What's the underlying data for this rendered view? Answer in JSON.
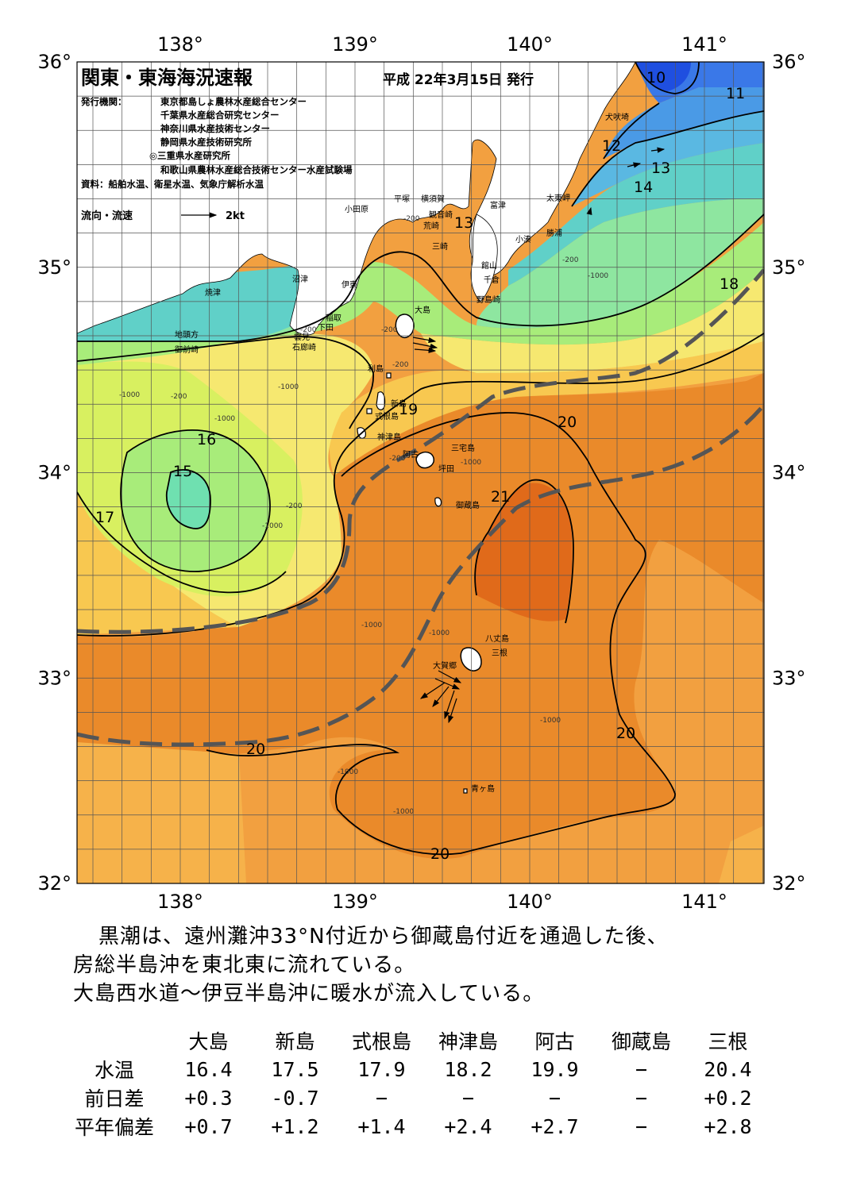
{
  "map": {
    "title": "関東・東海海況速報",
    "issue_date": "平成 22年3月15日 発行",
    "issuers_label": "発行機関：",
    "issuers": [
      "東京都島しょ農林水産総合センター",
      "千葉県水産総合研究センター",
      "神奈川県水産技術センター",
      "静岡県水産技術研究所",
      "◎三重県水産研究所",
      "和歌山県農林水産総合技術センター水産試験場"
    ],
    "sources": "資料：船舶水温、衛星水温、気象庁解析水温",
    "legend_label": "流向・流速",
    "legend_value": "2kt",
    "lon_ticks": [
      "138°",
      "139°",
      "140°",
      "141°"
    ],
    "lat_ticks": [
      "36°",
      "35°",
      "34°",
      "33°",
      "32°"
    ],
    "places": [
      {
        "name": "小田原"
      },
      {
        "name": "平塚"
      },
      {
        "name": "横須賀"
      },
      {
        "name": "観音崎"
      },
      {
        "name": "荒崎"
      },
      {
        "name": "三崎"
      },
      {
        "name": "富津"
      },
      {
        "name": "館山"
      },
      {
        "name": "千倉"
      },
      {
        "name": "野島崎"
      },
      {
        "name": "小湊"
      },
      {
        "name": "勝浦"
      },
      {
        "name": "太東岬"
      },
      {
        "name": "犬吠埼"
      },
      {
        "name": "沼津"
      },
      {
        "name": "伊東"
      },
      {
        "name": "稲取"
      },
      {
        "name": "下田"
      },
      {
        "name": "雲見"
      },
      {
        "name": "石廊崎"
      },
      {
        "name": "焼津"
      },
      {
        "name": "地頭方"
      },
      {
        "name": "御前崎"
      },
      {
        "name": "大島"
      },
      {
        "name": "利島"
      },
      {
        "name": "新島"
      },
      {
        "name": "式根島"
      },
      {
        "name": "神津島"
      },
      {
        "name": "三宅島"
      },
      {
        "name": "阿古"
      },
      {
        "name": "坪田"
      },
      {
        "name": "御蔵島"
      },
      {
        "name": "八丈島"
      },
      {
        "name": "三根"
      },
      {
        "name": "大賀郷"
      },
      {
        "name": "青ヶ島"
      }
    ],
    "isotherm_labels": [
      "10",
      "11",
      "12",
      "13",
      "14",
      "13",
      "16",
      "15",
      "17",
      "18",
      "19",
      "20",
      "21",
      "20",
      "20",
      "20"
    ],
    "depth_labels": [
      "-200",
      "-200",
      "-200",
      "-200",
      "-200",
      "-200",
      "-200",
      "-1000",
      "-1000",
      "-1000",
      "-1000",
      "-1000",
      "-1000",
      "-1000",
      "-1000",
      "-1000",
      "-1000",
      "-1000",
      "-200"
    ],
    "colors": {
      "t10": "#1f4fe0",
      "t11": "#3a78e8",
      "t12": "#4a9ae6",
      "t13": "#5ab8e2",
      "t14": "#60d0c8",
      "t15": "#6fe0b0",
      "t16": "#a8ec7a",
      "t17": "#d8f060",
      "t18": "#f6e870",
      "t19": "#f8c850",
      "t20": "#f2a040",
      "t21": "#ea8a2a",
      "t22": "#e06a1a",
      "land": "#ffffff",
      "kuroshio": "#555555"
    }
  },
  "summary": {
    "line1": "黒潮は、遠州灘沖33°N付近から御蔵島付近を通過した後、",
    "line2": "房総半島沖を東北東に流れている。",
    "line3": "大島西水道〜伊豆半島沖に暖水が流入している。"
  },
  "table": {
    "columns": [
      "大島",
      "新島",
      "式根島",
      "神津島",
      "阿古",
      "御蔵島",
      "三根"
    ],
    "rows": [
      {
        "label": "水温",
        "values": [
          "16.4",
          "17.5",
          "17.9",
          "18.2",
          "19.9",
          "−",
          "20.4"
        ]
      },
      {
        "label": "前日差",
        "values": [
          "+0.3",
          "-0.7",
          "−",
          "−",
          "−",
          "−",
          "+0.2"
        ]
      },
      {
        "label": "平年偏差",
        "values": [
          "+0.7",
          "+1.2",
          "+1.4",
          "+2.4",
          "+2.7",
          "−",
          "+2.8"
        ]
      }
    ]
  }
}
